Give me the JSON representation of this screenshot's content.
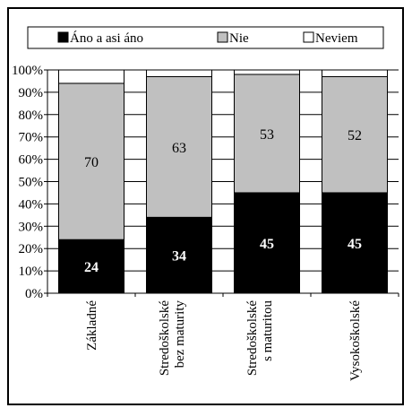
{
  "chart_data": {
    "type": "bar",
    "stacked": true,
    "title": "",
    "xlabel": "",
    "ylabel": "",
    "ylim": [
      0,
      100
    ],
    "yticks": [
      "0%",
      "10%",
      "20%",
      "30%",
      "40%",
      "50%",
      "60%",
      "70%",
      "80%",
      "90%",
      "100%"
    ],
    "grid": true,
    "legend_position": "top",
    "categories": [
      [
        "Základné"
      ],
      [
        "Stredoškolské",
        "bez maturity"
      ],
      [
        "Stredoškolské",
        "s maturitou"
      ],
      [
        "Vysokoškolské"
      ]
    ],
    "series": [
      {
        "name": "Áno a asi áno",
        "color": "#000000",
        "label_color": "#ffffff",
        "values": [
          24,
          34,
          45,
          45
        ]
      },
      {
        "name": "Nie",
        "color": "#c0c0c0",
        "label_color": "#000000",
        "values": [
          70,
          63,
          53,
          52
        ]
      },
      {
        "name": "Neviem",
        "color": "#ffffff",
        "label_color": "#000000",
        "values": [
          6,
          3,
          2,
          3
        ]
      }
    ],
    "labeled_series": [
      0,
      1
    ]
  }
}
